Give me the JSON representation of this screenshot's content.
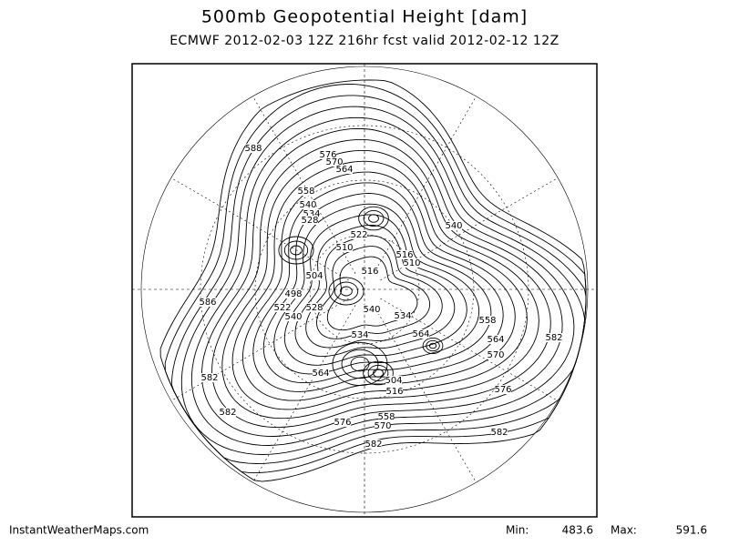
{
  "header": {
    "title": "500mb Geopotential Height [dam]",
    "subtitle": "ECMWF 2012-02-03 12Z 216hr fcst valid 2012-02-12 12Z"
  },
  "map": {
    "contour_labels": [
      588,
      576,
      570,
      564,
      558,
      540,
      534,
      528,
      522,
      510,
      504,
      498,
      522,
      540,
      528,
      516,
      516,
      510,
      540,
      540,
      534,
      534,
      564,
      558,
      564,
      570,
      582,
      576,
      582,
      586,
      582,
      582,
      564,
      504,
      516,
      576,
      558,
      570,
      582
    ]
  },
  "footer": {
    "source": "InstantWeatherMaps.com",
    "min_label": "Min:",
    "min": 483.6,
    "max_label": "Max:",
    "max": 591.6
  }
}
